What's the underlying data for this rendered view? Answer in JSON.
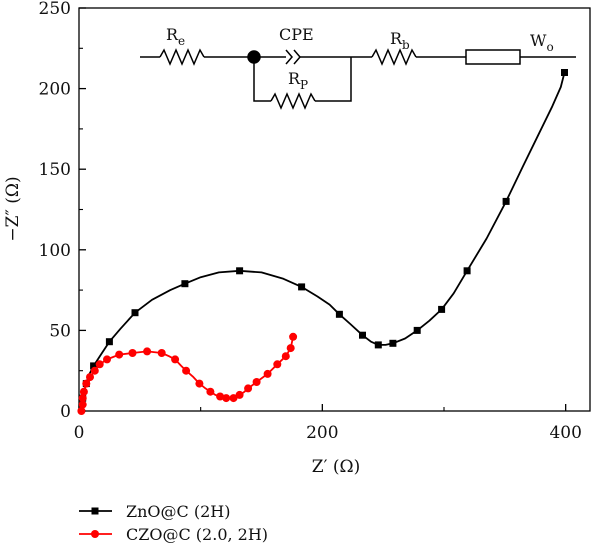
{
  "chart_data": {
    "type": "line",
    "xlabel": "Z′ (Ω)",
    "ylabel": "−Z″ (Ω)",
    "xlim": [
      0,
      420
    ],
    "ylim": [
      0,
      250
    ],
    "x_ticks": [
      "0",
      "200",
      "400"
    ],
    "y_ticks": [
      "0",
      "50",
      "100",
      "150",
      "200",
      "250"
    ],
    "grid": false,
    "legend_position": "bottom-left, outside plot",
    "series": [
      {
        "name": "ZnO@C (2H)",
        "color": "#000000",
        "marker": "square",
        "markers": [
          [
            3,
            8
          ],
          [
            6,
            17
          ],
          [
            12,
            28
          ],
          [
            25,
            43
          ],
          [
            46,
            61
          ],
          [
            87,
            79
          ],
          [
            132,
            87
          ],
          [
            183,
            77
          ],
          [
            214,
            60
          ],
          [
            233,
            47
          ],
          [
            246,
            41
          ],
          [
            258,
            42
          ],
          [
            278,
            50
          ],
          [
            298,
            63
          ],
          [
            319,
            87
          ],
          [
            351,
            130
          ],
          [
            399,
            210
          ]
        ],
        "curve": [
          [
            2,
            0
          ],
          [
            2,
            5
          ],
          [
            3,
            8
          ],
          [
            4,
            12
          ],
          [
            6,
            17
          ],
          [
            8,
            22
          ],
          [
            12,
            28
          ],
          [
            18,
            35
          ],
          [
            25,
            43
          ],
          [
            34,
            51
          ],
          [
            46,
            61
          ],
          [
            60,
            69
          ],
          [
            75,
            75
          ],
          [
            87,
            79
          ],
          [
            100,
            83
          ],
          [
            115,
            86
          ],
          [
            132,
            87
          ],
          [
            150,
            86
          ],
          [
            168,
            82
          ],
          [
            183,
            77
          ],
          [
            196,
            71
          ],
          [
            206,
            66
          ],
          [
            214,
            60
          ],
          [
            223,
            54
          ],
          [
            233,
            47
          ],
          [
            240,
            43
          ],
          [
            246,
            41
          ],
          [
            252,
            41
          ],
          [
            258,
            42
          ],
          [
            268,
            45
          ],
          [
            278,
            50
          ],
          [
            288,
            56
          ],
          [
            298,
            63
          ],
          [
            308,
            73
          ],
          [
            319,
            87
          ],
          [
            335,
            107
          ],
          [
            351,
            130
          ],
          [
            365,
            152
          ],
          [
            378,
            172
          ],
          [
            389,
            189
          ],
          [
            396,
            201
          ],
          [
            399,
            210
          ]
        ]
      },
      {
        "name": "CZO@C (2.0, 2H)",
        "color": "#ff0000",
        "marker": "circle",
        "markers": [
          [
            2,
            0
          ],
          [
            3,
            4
          ],
          [
            3,
            8
          ],
          [
            4,
            12
          ],
          [
            6,
            17
          ],
          [
            9,
            21
          ],
          [
            13,
            25
          ],
          [
            17,
            29
          ],
          [
            23,
            32
          ],
          [
            33,
            35
          ],
          [
            44,
            36
          ],
          [
            56,
            37
          ],
          [
            68,
            36
          ],
          [
            79,
            32
          ],
          [
            88,
            25
          ],
          [
            99,
            17
          ],
          [
            108,
            12
          ],
          [
            116,
            9
          ],
          [
            121,
            8
          ],
          [
            127,
            8
          ],
          [
            132,
            10
          ],
          [
            139,
            14
          ],
          [
            146,
            18
          ],
          [
            155,
            23
          ],
          [
            163,
            29
          ],
          [
            170,
            34
          ],
          [
            174,
            39
          ],
          [
            176,
            46
          ]
        ],
        "curve": [
          [
            2,
            0
          ],
          [
            3,
            4
          ],
          [
            3,
            8
          ],
          [
            4,
            12
          ],
          [
            6,
            17
          ],
          [
            9,
            21
          ],
          [
            13,
            25
          ],
          [
            17,
            29
          ],
          [
            23,
            32
          ],
          [
            33,
            35
          ],
          [
            44,
            36
          ],
          [
            56,
            37
          ],
          [
            68,
            36
          ],
          [
            74,
            34
          ],
          [
            79,
            32
          ],
          [
            84,
            28
          ],
          [
            88,
            25
          ],
          [
            94,
            21
          ],
          [
            99,
            17
          ],
          [
            104,
            14
          ],
          [
            108,
            12
          ],
          [
            112,
            10
          ],
          [
            116,
            9
          ],
          [
            121,
            8
          ],
          [
            127,
            8
          ],
          [
            132,
            10
          ],
          [
            136,
            12
          ],
          [
            139,
            14
          ],
          [
            146,
            18
          ],
          [
            155,
            23
          ],
          [
            163,
            29
          ],
          [
            170,
            34
          ],
          [
            174,
            39
          ],
          [
            176,
            46
          ]
        ]
      }
    ],
    "inset_circuit": {
      "labels": [
        {
          "main": "R",
          "sub": "e"
        },
        {
          "main": "CPE",
          "sub": ""
        },
        {
          "main": "R",
          "sub": "P"
        },
        {
          "main": "R",
          "sub": "b"
        },
        {
          "main": "W",
          "sub": "o"
        }
      ]
    }
  }
}
